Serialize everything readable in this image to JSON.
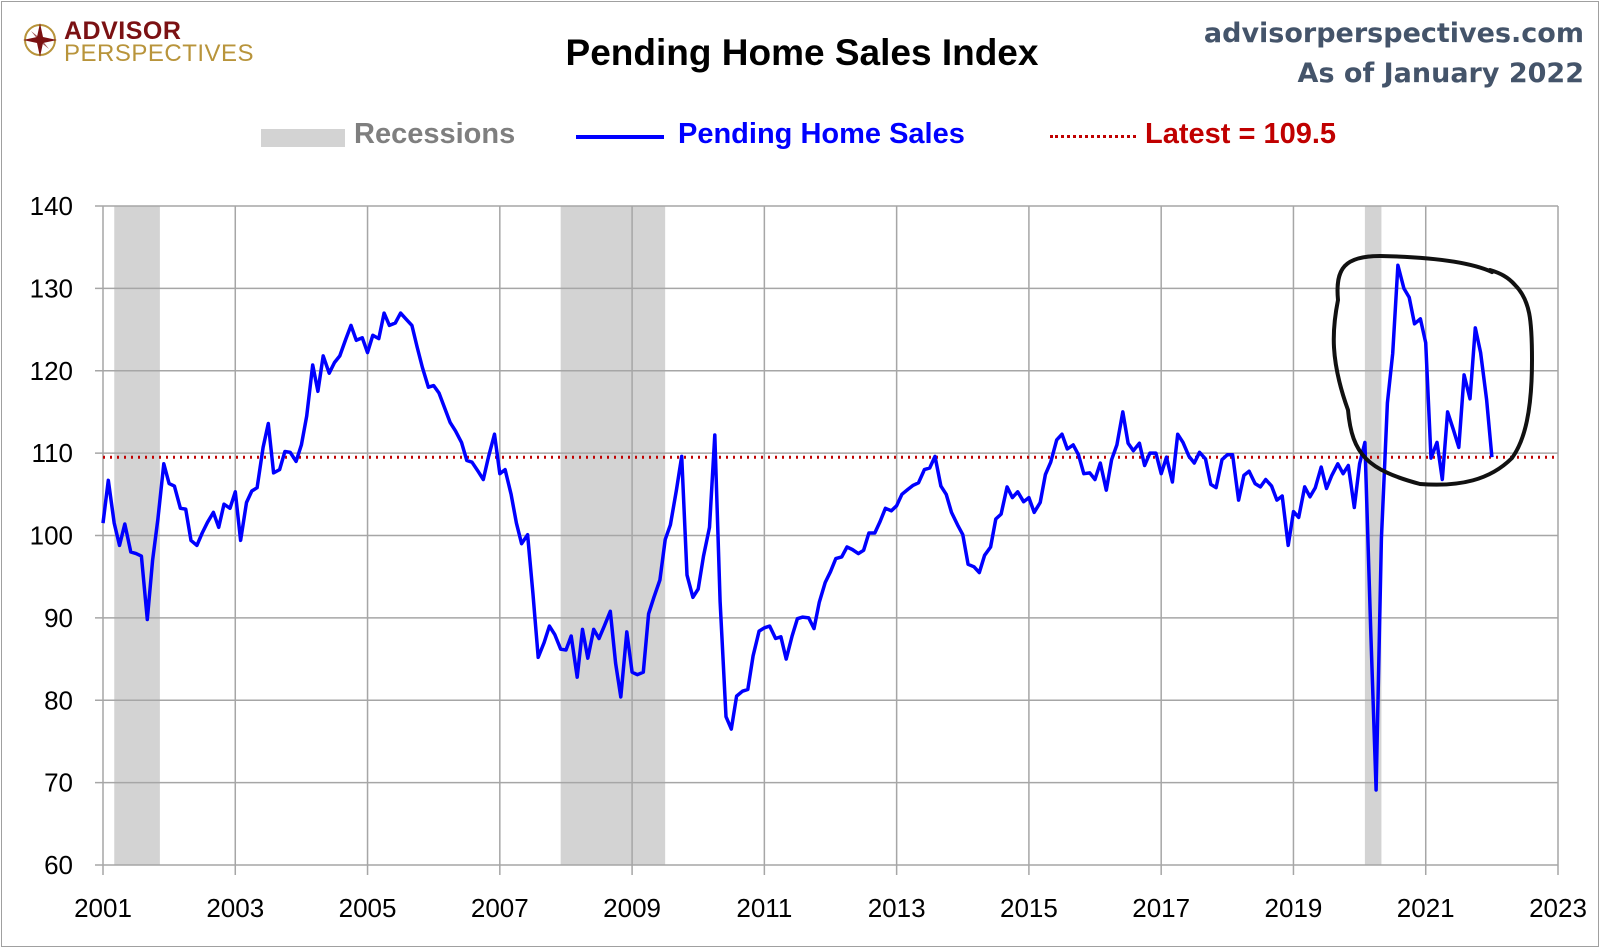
{
  "header": {
    "logo_line1": "ADVISOR",
    "logo_line2": "PERSPECTIVES",
    "title": "Pending Home Sales Index",
    "site": "advisorperspectives.com",
    "as_of": "As of January 2022"
  },
  "colors": {
    "series": "#0000ff",
    "latest": "#c00000",
    "recession": "#d3d3d3",
    "grid": "#a6a6a6",
    "source": "#44546a"
  },
  "chart_data": {
    "type": "line",
    "title": "Pending Home Sales Index",
    "xlabel": "",
    "ylabel": "",
    "xlim": [
      2001,
      2023
    ],
    "ylim": [
      60,
      140
    ],
    "x_ticks": [
      "2001",
      "2003",
      "2005",
      "2007",
      "2009",
      "2011",
      "2013",
      "2015",
      "2017",
      "2019",
      "2021",
      "2023"
    ],
    "y_ticks": [
      "60",
      "70",
      "80",
      "90",
      "100",
      "110",
      "120",
      "130",
      "140"
    ],
    "grid": true,
    "legend_position": "top",
    "legend": {
      "recessions": "Recessions",
      "series": "Pending Home Sales",
      "latest": "Latest = 109.5"
    },
    "latest_value": 109.5,
    "recessions": [
      [
        2001.17,
        2001.86
      ],
      [
        2007.92,
        2009.5
      ],
      [
        2020.08,
        2020.33
      ]
    ],
    "series": [
      {
        "name": "Pending Home Sales",
        "points": [
          [
            2001.0,
            101.5
          ],
          [
            2001.08,
            106.7
          ],
          [
            2001.17,
            101.5
          ],
          [
            2001.25,
            98.8
          ],
          [
            2001.33,
            101.4
          ],
          [
            2001.42,
            98
          ],
          [
            2001.5,
            97.8
          ],
          [
            2001.58,
            97.5
          ],
          [
            2001.67,
            89.8
          ],
          [
            2001.75,
            97
          ],
          [
            2001.83,
            102
          ],
          [
            2001.92,
            108.7
          ],
          [
            2002.0,
            106.3
          ],
          [
            2002.08,
            106
          ],
          [
            2002.17,
            103.3
          ],
          [
            2002.25,
            103.2
          ],
          [
            2002.33,
            99.4
          ],
          [
            2002.42,
            98.8
          ],
          [
            2002.5,
            100.3
          ],
          [
            2002.58,
            101.6
          ],
          [
            2002.67,
            102.8
          ],
          [
            2002.75,
            101
          ],
          [
            2002.83,
            103.8
          ],
          [
            2002.92,
            103.3
          ],
          [
            2003.0,
            105.3
          ],
          [
            2003.08,
            99.4
          ],
          [
            2003.17,
            104
          ],
          [
            2003.25,
            105.4
          ],
          [
            2003.33,
            105.8
          ],
          [
            2003.42,
            110.7
          ],
          [
            2003.5,
            113.6
          ],
          [
            2003.58,
            107.6
          ],
          [
            2003.67,
            108
          ],
          [
            2003.75,
            110.2
          ],
          [
            2003.83,
            110.1
          ],
          [
            2003.92,
            109
          ],
          [
            2004.0,
            111
          ],
          [
            2004.08,
            114.5
          ],
          [
            2004.17,
            120.7
          ],
          [
            2004.25,
            117.5
          ],
          [
            2004.33,
            121.8
          ],
          [
            2004.42,
            119.7
          ],
          [
            2004.5,
            121
          ],
          [
            2004.58,
            121.8
          ],
          [
            2004.67,
            123.8
          ],
          [
            2004.75,
            125.5
          ],
          [
            2004.83,
            123.7
          ],
          [
            2004.92,
            124
          ],
          [
            2005.0,
            122.2
          ],
          [
            2005.08,
            124.3
          ],
          [
            2005.17,
            123.9
          ],
          [
            2005.25,
            127
          ],
          [
            2005.33,
            125.5
          ],
          [
            2005.42,
            125.8
          ],
          [
            2005.5,
            127
          ],
          [
            2005.58,
            126.3
          ],
          [
            2005.67,
            125.5
          ],
          [
            2005.75,
            122.9
          ],
          [
            2005.83,
            120.4
          ],
          [
            2005.92,
            118
          ],
          [
            2006.0,
            118.2
          ],
          [
            2006.08,
            117.3
          ],
          [
            2006.17,
            115.4
          ],
          [
            2006.25,
            113.7
          ],
          [
            2006.33,
            112.7
          ],
          [
            2006.42,
            111.3
          ],
          [
            2006.5,
            109.1
          ],
          [
            2006.58,
            108.9
          ],
          [
            2006.67,
            107.8
          ],
          [
            2006.75,
            106.8
          ],
          [
            2006.83,
            109.6
          ],
          [
            2006.92,
            112.3
          ],
          [
            2007.0,
            107.5
          ],
          [
            2007.08,
            108
          ],
          [
            2007.17,
            105
          ],
          [
            2007.25,
            101.5
          ],
          [
            2007.33,
            99
          ],
          [
            2007.42,
            100.1
          ],
          [
            2007.5,
            93
          ],
          [
            2007.58,
            85.2
          ],
          [
            2007.67,
            87
          ],
          [
            2007.75,
            89
          ],
          [
            2007.83,
            88
          ],
          [
            2007.92,
            86.2
          ],
          [
            2008.0,
            86.1
          ],
          [
            2008.08,
            87.8
          ],
          [
            2008.17,
            82.8
          ],
          [
            2008.25,
            88.6
          ],
          [
            2008.33,
            85.1
          ],
          [
            2008.42,
            88.6
          ],
          [
            2008.5,
            87.5
          ],
          [
            2008.58,
            89
          ],
          [
            2008.67,
            90.8
          ],
          [
            2008.75,
            84.5
          ],
          [
            2008.83,
            80.4
          ],
          [
            2008.92,
            88.3
          ],
          [
            2009.0,
            83.4
          ],
          [
            2009.08,
            83.1
          ],
          [
            2009.17,
            83.4
          ],
          [
            2009.25,
            90.5
          ],
          [
            2009.33,
            92.5
          ],
          [
            2009.42,
            94.6
          ],
          [
            2009.5,
            99.5
          ],
          [
            2009.58,
            101.3
          ],
          [
            2009.67,
            105.5
          ],
          [
            2009.75,
            109.6
          ],
          [
            2009.83,
            95.2
          ],
          [
            2009.92,
            92.5
          ],
          [
            2010.0,
            93.5
          ],
          [
            2010.08,
            97.5
          ],
          [
            2010.17,
            101
          ],
          [
            2010.25,
            112.2
          ],
          [
            2010.33,
            92
          ],
          [
            2010.42,
            78
          ],
          [
            2010.5,
            76.5
          ],
          [
            2010.58,
            80.5
          ],
          [
            2010.67,
            81.1
          ],
          [
            2010.75,
            81.3
          ],
          [
            2010.83,
            85.4
          ],
          [
            2010.92,
            88.4
          ],
          [
            2011.0,
            88.8
          ],
          [
            2011.08,
            89
          ],
          [
            2011.17,
            87.5
          ],
          [
            2011.25,
            87.7
          ],
          [
            2011.33,
            85
          ],
          [
            2011.42,
            87.8
          ],
          [
            2011.5,
            89.9
          ],
          [
            2011.58,
            90.1
          ],
          [
            2011.67,
            90
          ],
          [
            2011.75,
            88.7
          ],
          [
            2011.83,
            91.9
          ],
          [
            2011.92,
            94.3
          ],
          [
            2012.0,
            95.6
          ],
          [
            2012.08,
            97.2
          ],
          [
            2012.17,
            97.4
          ],
          [
            2012.25,
            98.6
          ],
          [
            2012.33,
            98.3
          ],
          [
            2012.42,
            97.8
          ],
          [
            2012.5,
            98.2
          ],
          [
            2012.58,
            100.3
          ],
          [
            2012.67,
            100.3
          ],
          [
            2012.75,
            101.7
          ],
          [
            2012.83,
            103.3
          ],
          [
            2012.92,
            103
          ],
          [
            2013.0,
            103.6
          ],
          [
            2013.08,
            105
          ],
          [
            2013.17,
            105.6
          ],
          [
            2013.25,
            106.1
          ],
          [
            2013.33,
            106.4
          ],
          [
            2013.42,
            108
          ],
          [
            2013.5,
            108.2
          ],
          [
            2013.58,
            109.6
          ],
          [
            2013.67,
            106
          ],
          [
            2013.75,
            105
          ],
          [
            2013.83,
            102.8
          ],
          [
            2013.92,
            101.3
          ],
          [
            2014.0,
            100.1
          ],
          [
            2014.08,
            96.5
          ],
          [
            2014.17,
            96.2
          ],
          [
            2014.25,
            95.5
          ],
          [
            2014.33,
            97.6
          ],
          [
            2014.42,
            98.6
          ],
          [
            2014.5,
            102
          ],
          [
            2014.58,
            102.6
          ],
          [
            2014.67,
            105.9
          ],
          [
            2014.75,
            104.6
          ],
          [
            2014.83,
            105.3
          ],
          [
            2014.92,
            104.1
          ],
          [
            2015.0,
            104.6
          ],
          [
            2015.08,
            102.8
          ],
          [
            2015.17,
            104
          ],
          [
            2015.25,
            107.4
          ],
          [
            2015.33,
            108.9
          ],
          [
            2015.42,
            111.6
          ],
          [
            2015.5,
            112.3
          ],
          [
            2015.58,
            110.5
          ],
          [
            2015.67,
            111
          ],
          [
            2015.75,
            109.8
          ],
          [
            2015.83,
            107.5
          ],
          [
            2015.92,
            107.6
          ],
          [
            2016.0,
            106.8
          ],
          [
            2016.08,
            108.8
          ],
          [
            2016.17,
            105.5
          ],
          [
            2016.25,
            109.2
          ],
          [
            2016.33,
            111
          ],
          [
            2016.42,
            115
          ],
          [
            2016.5,
            111.2
          ],
          [
            2016.58,
            110.3
          ],
          [
            2016.67,
            111.2
          ],
          [
            2016.75,
            108.5
          ],
          [
            2016.83,
            110
          ],
          [
            2016.92,
            110
          ],
          [
            2017.0,
            107.5
          ],
          [
            2017.08,
            109.5
          ],
          [
            2017.17,
            106.5
          ],
          [
            2017.25,
            112.3
          ],
          [
            2017.33,
            111.3
          ],
          [
            2017.42,
            109.6
          ],
          [
            2017.5,
            108.8
          ],
          [
            2017.58,
            110.1
          ],
          [
            2017.67,
            109.3
          ],
          [
            2017.75,
            106.2
          ],
          [
            2017.83,
            105.8
          ],
          [
            2017.92,
            109.2
          ],
          [
            2018.0,
            109.8
          ],
          [
            2018.08,
            109.8
          ],
          [
            2018.17,
            104.3
          ],
          [
            2018.25,
            107.3
          ],
          [
            2018.33,
            107.8
          ],
          [
            2018.42,
            106.3
          ],
          [
            2018.5,
            105.9
          ],
          [
            2018.58,
            106.8
          ],
          [
            2018.67,
            106
          ],
          [
            2018.75,
            104.3
          ],
          [
            2018.83,
            104.8
          ],
          [
            2018.92,
            98.8
          ],
          [
            2019.0,
            102.9
          ],
          [
            2019.08,
            102.2
          ],
          [
            2019.17,
            105.9
          ],
          [
            2019.25,
            104.7
          ],
          [
            2019.33,
            105.8
          ],
          [
            2019.42,
            108.3
          ],
          [
            2019.5,
            105.7
          ],
          [
            2019.58,
            107.3
          ],
          [
            2019.67,
            108.7
          ],
          [
            2019.75,
            107.5
          ],
          [
            2019.83,
            108.5
          ],
          [
            2019.92,
            103.4
          ],
          [
            2020.0,
            108.7
          ],
          [
            2020.08,
            111.3
          ],
          [
            2020.17,
            88.2
          ],
          [
            2020.25,
            69.1
          ],
          [
            2020.33,
            99.6
          ],
          [
            2020.42,
            116.1
          ],
          [
            2020.5,
            122.1
          ],
          [
            2020.58,
            132.8
          ],
          [
            2020.67,
            130.0
          ],
          [
            2020.75,
            128.9
          ],
          [
            2020.83,
            125.7
          ],
          [
            2020.92,
            126.3
          ],
          [
            2021.0,
            123.4
          ],
          [
            2021.08,
            109.4
          ],
          [
            2021.17,
            111.3
          ],
          [
            2021.25,
            106.8
          ],
          [
            2021.33,
            115
          ],
          [
            2021.42,
            112.8
          ],
          [
            2021.5,
            110.7
          ],
          [
            2021.58,
            119.5
          ],
          [
            2021.67,
            116.6
          ],
          [
            2021.75,
            125.2
          ],
          [
            2021.83,
            122.2
          ],
          [
            2021.92,
            116.5
          ],
          [
            2022.0,
            109.5
          ]
        ]
      }
    ]
  }
}
